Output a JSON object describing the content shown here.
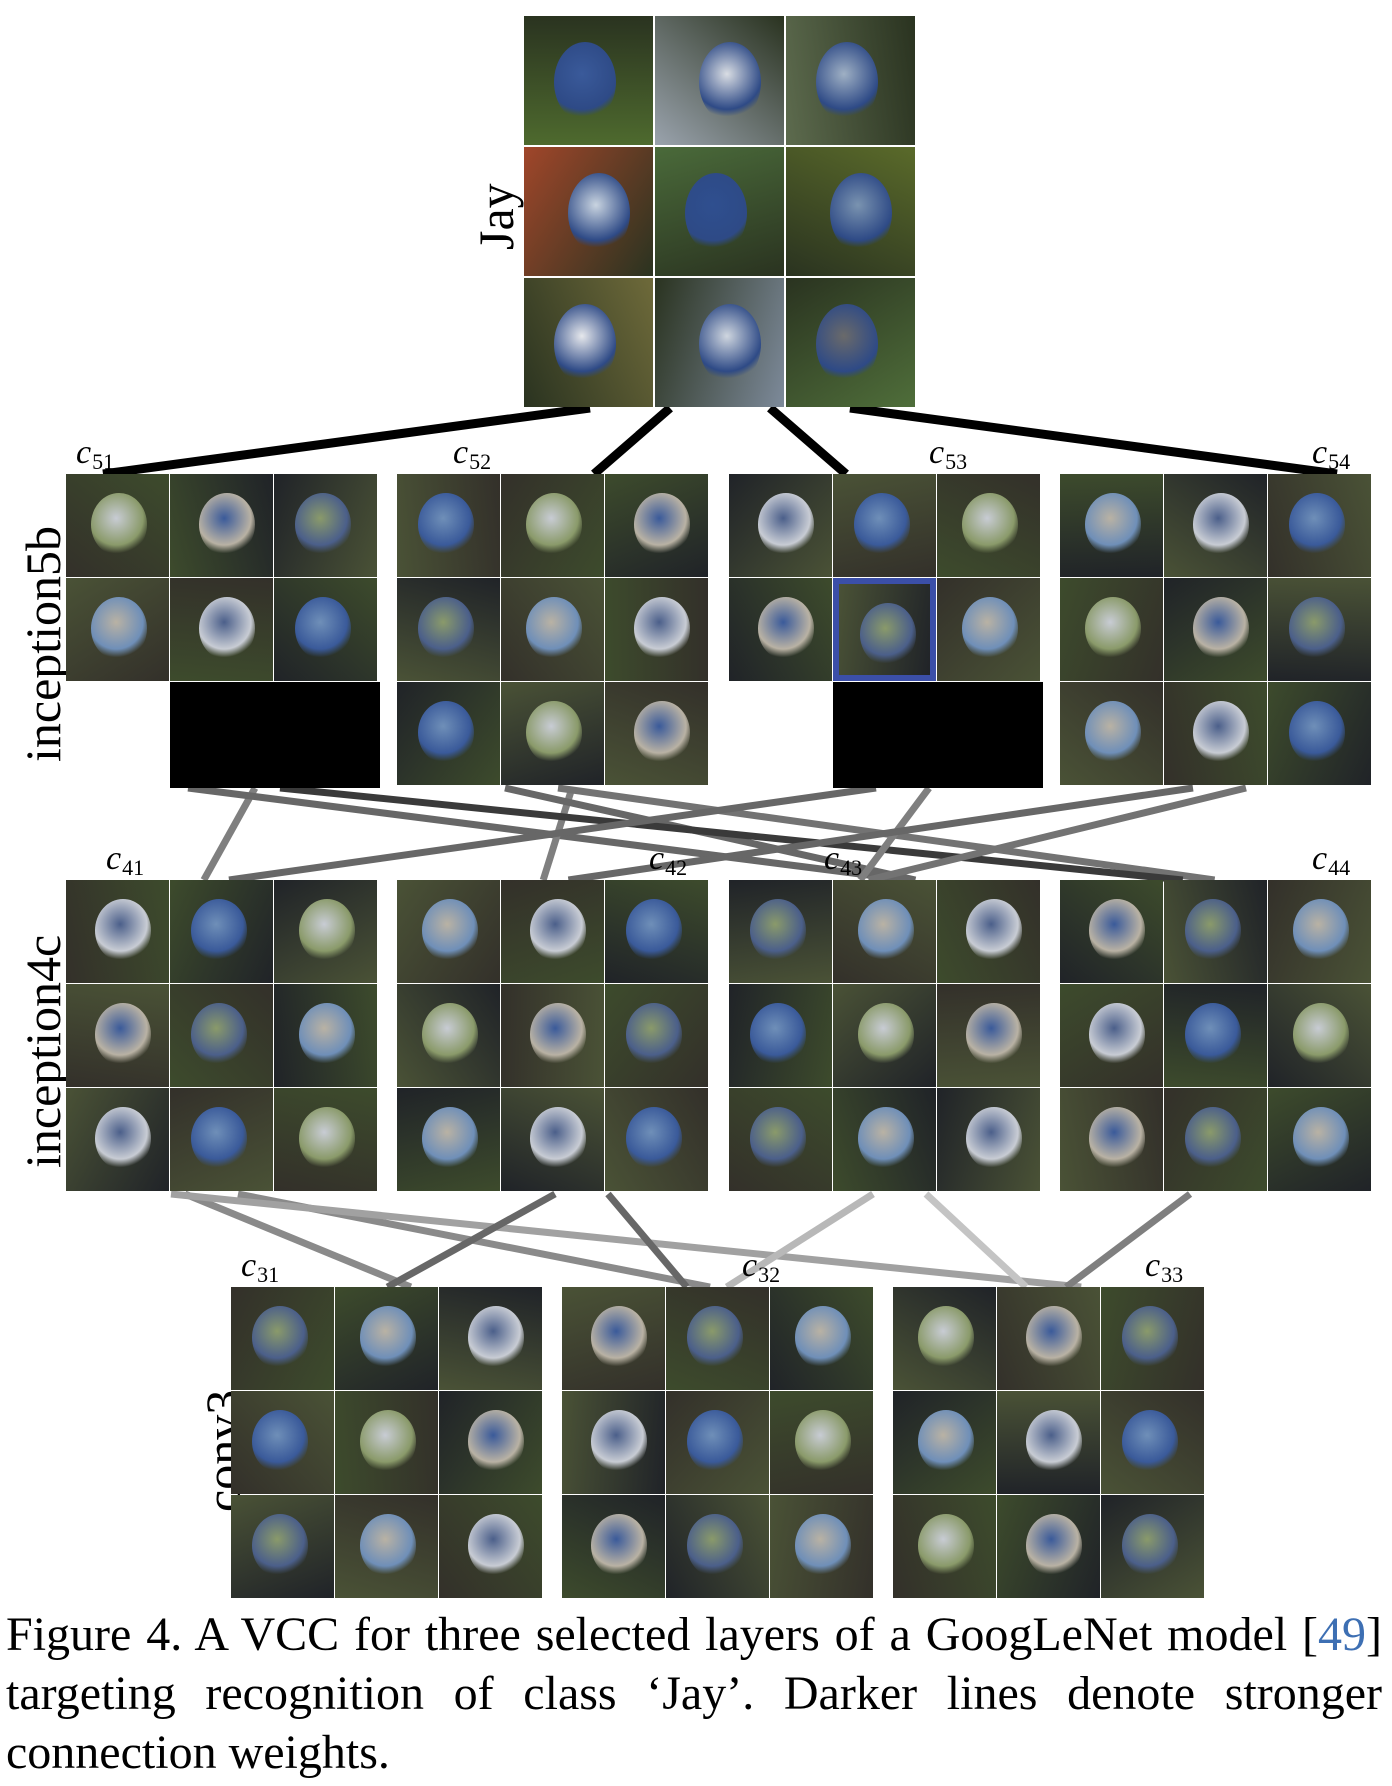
{
  "class_label": "Jay",
  "layers": [
    {
      "id": "inception5b",
      "label": "inception5b",
      "concepts": [
        {
          "base": "c",
          "sub": "51",
          "empty_tiles": [
            7,
            8
          ],
          "highlight_tile": null
        },
        {
          "base": "c",
          "sub": "52",
          "empty_tiles": [],
          "highlight_tile": null
        },
        {
          "base": "c",
          "sub": "53",
          "empty_tiles": [
            7,
            8
          ],
          "highlight_tile": 5
        },
        {
          "base": "c",
          "sub": "54",
          "empty_tiles": [],
          "highlight_tile": null
        }
      ]
    },
    {
      "id": "inception4c",
      "label": "inception4c",
      "concepts": [
        {
          "base": "c",
          "sub": "41",
          "empty_tiles": [],
          "highlight_tile": null
        },
        {
          "base": "c",
          "sub": "42",
          "empty_tiles": [],
          "highlight_tile": null
        },
        {
          "base": "c",
          "sub": "43",
          "empty_tiles": [],
          "highlight_tile": null
        },
        {
          "base": "c",
          "sub": "44",
          "empty_tiles": [],
          "highlight_tile": null
        }
      ]
    },
    {
      "id": "conv3",
      "label": "conv3",
      "concepts": [
        {
          "base": "c",
          "sub": "31",
          "empty_tiles": [],
          "highlight_tile": null
        },
        {
          "base": "c",
          "sub": "32",
          "empty_tiles": [],
          "highlight_tile": null
        },
        {
          "base": "c",
          "sub": "33",
          "empty_tiles": [],
          "highlight_tile": null
        }
      ]
    }
  ],
  "connections": [
    {
      "from": "Jay",
      "to": "c51",
      "weight": 1.0
    },
    {
      "from": "Jay",
      "to": "c52",
      "weight": 1.0
    },
    {
      "from": "Jay",
      "to": "c53",
      "weight": 1.0
    },
    {
      "from": "Jay",
      "to": "c54",
      "weight": 1.0
    },
    {
      "from": "c51",
      "to": "c41",
      "weight": 0.45
    },
    {
      "from": "c51",
      "to": "c43",
      "weight": 0.55
    },
    {
      "from": "c52",
      "to": "c42",
      "weight": 0.45
    },
    {
      "from": "c52",
      "to": "c43",
      "weight": 0.55
    },
    {
      "from": "c52",
      "to": "c44",
      "weight": 0.5
    },
    {
      "from": "c51",
      "to": "c44",
      "weight": 0.75
    },
    {
      "from": "c53",
      "to": "c41",
      "weight": 0.55
    },
    {
      "from": "c53",
      "to": "c43",
      "weight": 0.45
    },
    {
      "from": "c54",
      "to": "c42",
      "weight": 0.55
    },
    {
      "from": "c54",
      "to": "c43",
      "weight": 0.5
    },
    {
      "from": "c41",
      "to": "c31",
      "weight": 0.4
    },
    {
      "from": "c41",
      "to": "c32",
      "weight": 0.4
    },
    {
      "from": "c41",
      "to": "c33",
      "weight": 0.3
    },
    {
      "from": "c42",
      "to": "c31",
      "weight": 0.55
    },
    {
      "from": "c42",
      "to": "c32",
      "weight": 0.55
    },
    {
      "from": "c43",
      "to": "c32",
      "weight": 0.2
    },
    {
      "from": "c43",
      "to": "c33",
      "weight": 0.15
    },
    {
      "from": "c44",
      "to": "c33",
      "weight": 0.45
    }
  ],
  "caption": {
    "prefix": "Figure 4.  A VCC for three selected layers of a GoogLeNet model [",
    "ref": "49",
    "suffix": "] targeting recognition of class ‘Jay’. Darker lines denote stronger connection weights."
  },
  "colors": {
    "reference": "#3d6fb3",
    "jay_blue": "#3a5a9a",
    "highlight_border": "#3b4fa8"
  }
}
